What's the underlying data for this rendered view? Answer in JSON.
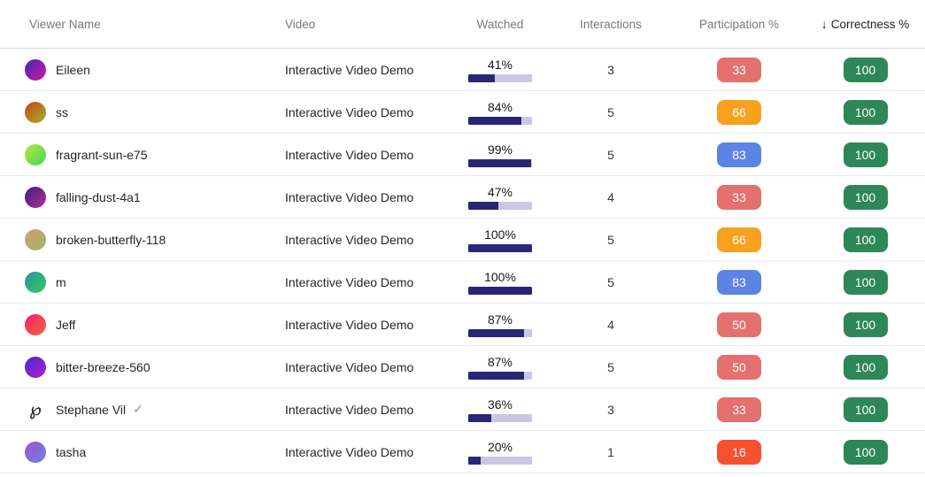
{
  "table": {
    "columns": {
      "viewer": "Viewer Name",
      "video": "Video",
      "watched": "Watched",
      "interactions": "Interactions",
      "participation": "Participation %",
      "correctness": "Correctness %"
    },
    "sort": {
      "column": "correctness",
      "direction": "desc",
      "icon": "↓"
    },
    "verified_icon": "✓",
    "colors": {
      "progress_fill": "#2b2577",
      "progress_track": "#c9c7e3",
      "badge_salmon": "#e57070",
      "badge_orange": "#f8a11e",
      "badge_blue": "#5b84e4",
      "badge_red": "#f5512e",
      "badge_green": "#2e8757"
    },
    "rows": [
      {
        "viewer": "Eileen",
        "avatar_gradient": [
          "#3d2bb5",
          "#d317a6"
        ],
        "video": "Interactive Video Demo",
        "watched_label": "41%",
        "watched_pct": 41,
        "interactions": "3",
        "participation": "33",
        "participation_color": "#e57070",
        "correctness": "100",
        "correctness_color": "#2e8757",
        "verified": false
      },
      {
        "viewer": "ss",
        "avatar_gradient": [
          "#cc4617",
          "#9fb32a"
        ],
        "video": "Interactive Video Demo",
        "watched_label": "84%",
        "watched_pct": 84,
        "interactions": "5",
        "participation": "66",
        "participation_color": "#f8a11e",
        "correctness": "100",
        "correctness_color": "#2e8757",
        "verified": false
      },
      {
        "viewer": "fragrant-sun-e75",
        "avatar_gradient": [
          "#b5e43c",
          "#42da60"
        ],
        "video": "Interactive Video Demo",
        "watched_label": "99%",
        "watched_pct": 99,
        "interactions": "5",
        "participation": "83",
        "participation_color": "#5b84e4",
        "correctness": "100",
        "correctness_color": "#2e8757",
        "verified": false
      },
      {
        "viewer": "falling-dust-4a1",
        "avatar_gradient": [
          "#3f2179",
          "#b02c9e"
        ],
        "video": "Interactive Video Demo",
        "watched_label": "47%",
        "watched_pct": 47,
        "interactions": "4",
        "participation": "33",
        "participation_color": "#e57070",
        "correctness": "100",
        "correctness_color": "#2e8757",
        "verified": false
      },
      {
        "viewer": "broken-butterfly-118",
        "avatar_gradient": [
          "#d79d72",
          "#97b867"
        ],
        "video": "Interactive Video Demo",
        "watched_label": "100%",
        "watched_pct": 100,
        "interactions": "5",
        "participation": "66",
        "participation_color": "#f8a11e",
        "correctness": "100",
        "correctness_color": "#2e8757",
        "verified": false
      },
      {
        "viewer": "m",
        "avatar_gradient": [
          "#2c8fa5",
          "#30cf57"
        ],
        "video": "Interactive Video Demo",
        "watched_label": "100%",
        "watched_pct": 100,
        "interactions": "5",
        "participation": "83",
        "participation_color": "#5b84e4",
        "correctness": "100",
        "correctness_color": "#2e8757",
        "verified": false
      },
      {
        "viewer": "Jeff",
        "avatar_gradient": [
          "#f41f70",
          "#f96239"
        ],
        "video": "Interactive Video Demo",
        "watched_label": "87%",
        "watched_pct": 87,
        "interactions": "4",
        "participation": "50",
        "participation_color": "#e57070",
        "correctness": "100",
        "correctness_color": "#2e8757",
        "verified": false
      },
      {
        "viewer": "bitter-breeze-560",
        "avatar_gradient": [
          "#4328d6",
          "#b81fc6"
        ],
        "video": "Interactive Video Demo",
        "watched_label": "87%",
        "watched_pct": 87,
        "interactions": "5",
        "participation": "50",
        "participation_color": "#e57070",
        "correctness": "100",
        "correctness_color": "#2e8757",
        "verified": false
      },
      {
        "viewer": "Stephane Vil",
        "avatar_glyph": "℘",
        "video": "Interactive Video Demo",
        "watched_label": "36%",
        "watched_pct": 36,
        "interactions": "3",
        "participation": "33",
        "participation_color": "#e57070",
        "correctness": "100",
        "correctness_color": "#2e8757",
        "verified": true
      },
      {
        "viewer": "tasha",
        "avatar_gradient": [
          "#a150d2",
          "#7080e6"
        ],
        "video": "Interactive Video Demo",
        "watched_label": "20%",
        "watched_pct": 20,
        "interactions": "1",
        "participation": "16",
        "participation_color": "#f5512e",
        "correctness": "100",
        "correctness_color": "#2e8757",
        "verified": false
      }
    ]
  }
}
